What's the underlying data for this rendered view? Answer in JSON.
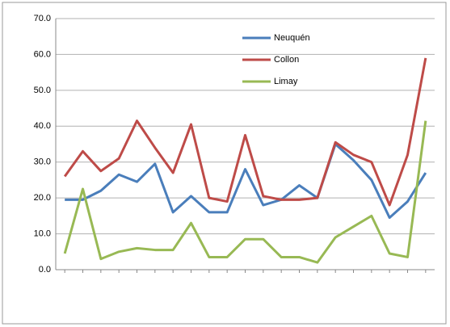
{
  "chart_data": {
    "type": "line",
    "categories": [
      null,
      null,
      null,
      null,
      null,
      null,
      null,
      null,
      null,
      null,
      null,
      null,
      null,
      null,
      null,
      null,
      null,
      null,
      null,
      null,
      null
    ],
    "series": [
      {
        "name": "Neuquén",
        "color": "#4a7ebb",
        "values": [
          19.5,
          19.5,
          22,
          26.5,
          24.5,
          29.5,
          16,
          20.5,
          16,
          16,
          28,
          18,
          19.5,
          23.5,
          20,
          35,
          30.5,
          25,
          14.5,
          19,
          27
        ]
      },
      {
        "name": "Collon",
        "color": "#be4b48",
        "values": [
          26,
          33,
          27.5,
          31,
          41.5,
          34,
          27,
          40.5,
          20,
          19,
          37.5,
          20.5,
          19.5,
          19.5,
          20,
          35.5,
          32,
          30,
          18,
          32,
          59
        ]
      },
      {
        "name": "Limay",
        "color": "#98b954",
        "values": [
          4.5,
          22.5,
          3,
          5,
          6,
          5.5,
          5.5,
          13,
          3.5,
          3.5,
          8.5,
          8.5,
          3.5,
          3.5,
          2,
          9,
          12,
          15,
          4.5,
          3.5,
          41.5
        ]
      }
    ],
    "ylim": [
      0,
      70
    ],
    "yticks": [
      {
        "value": 0,
        "label": "0.0"
      },
      {
        "value": 10,
        "label": "10.0"
      },
      {
        "value": 20,
        "label": "20.0"
      },
      {
        "value": 30,
        "label": "30.0"
      },
      {
        "value": 40,
        "label": "40.0"
      },
      {
        "value": 50,
        "label": "50.0"
      },
      {
        "value": 60,
        "label": "60.0"
      },
      {
        "value": 70,
        "label": "70.0"
      }
    ],
    "grid": true
  }
}
